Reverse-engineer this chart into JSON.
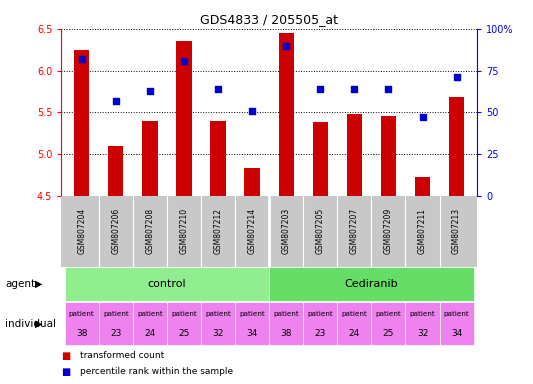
{
  "title": "GDS4833 / 205505_at",
  "samples": [
    "GSM807204",
    "GSM807206",
    "GSM807208",
    "GSM807210",
    "GSM807212",
    "GSM807214",
    "GSM807203",
    "GSM807205",
    "GSM807207",
    "GSM807209",
    "GSM807211",
    "GSM807213"
  ],
  "red_values": [
    6.25,
    5.1,
    5.4,
    6.35,
    5.4,
    4.83,
    6.45,
    5.38,
    5.48,
    5.45,
    4.73,
    5.68
  ],
  "blue_values": [
    82,
    57,
    63,
    81,
    64,
    51,
    90,
    64,
    64,
    64,
    47,
    71
  ],
  "ylim_left": [
    4.5,
    6.5
  ],
  "ylim_right": [
    0,
    100
  ],
  "yticks_left": [
    4.5,
    5.0,
    5.5,
    6.0,
    6.5
  ],
  "yticks_right": [
    0,
    25,
    50,
    75,
    100
  ],
  "ytick_labels_right": [
    "0",
    "25",
    "50",
    "75",
    "100%"
  ],
  "patients": [
    38,
    23,
    24,
    25,
    32,
    34,
    38,
    23,
    24,
    25,
    32,
    34
  ],
  "bar_color": "#CC0000",
  "dot_color": "#0000CC",
  "gray_color": "#C8C8C8",
  "control_color": "#90EE90",
  "cediranib_color": "#66DD66",
  "patient_color": "#EE82EE",
  "n_control": 6,
  "n_cediranib": 6,
  "legend_bar_label": "transformed count",
  "legend_dot_label": "percentile rank within the sample",
  "agent_label": "agent",
  "individual_label": "individual",
  "control_label": "control",
  "cediranib_label": "Cediranib"
}
